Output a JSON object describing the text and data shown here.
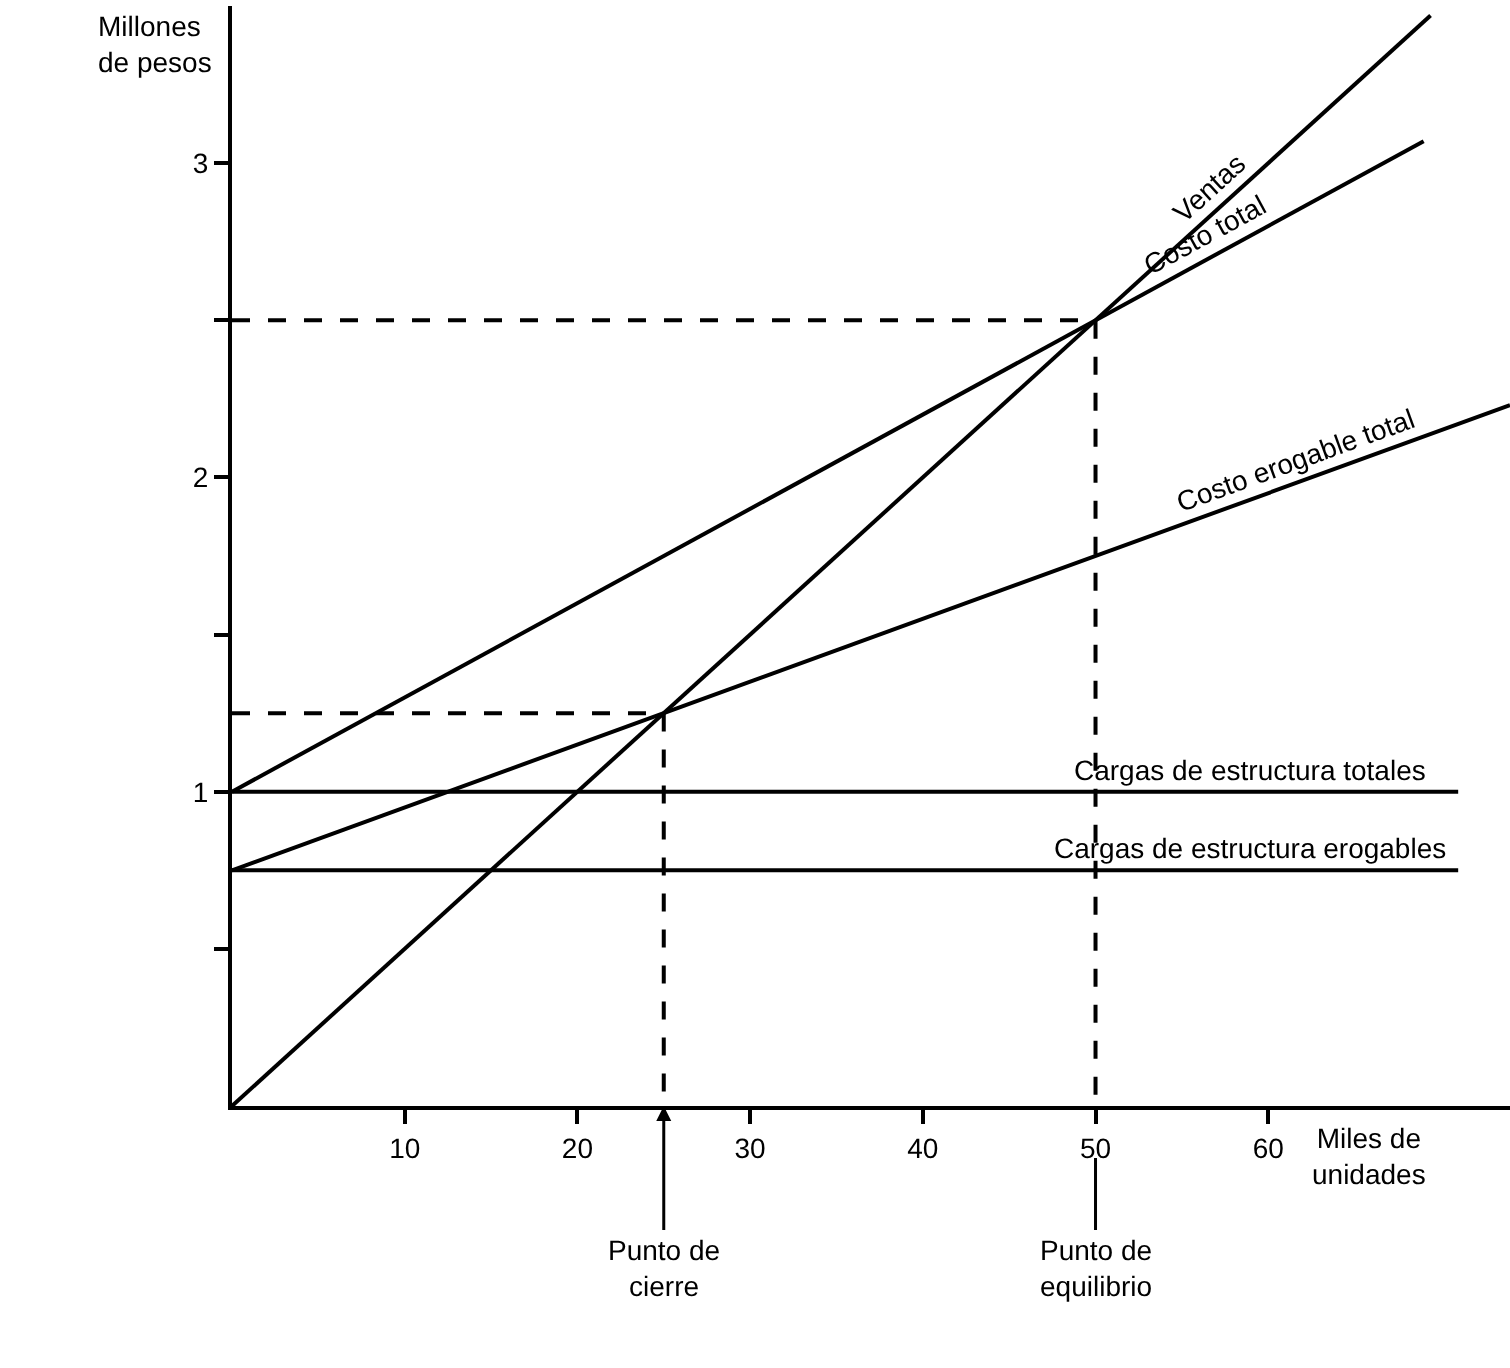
{
  "chart_data": {
    "type": "line",
    "xlabel": "Miles de unidades",
    "ylabel": "Millones de pesos",
    "xlim": [
      0,
      74
    ],
    "ylim": [
      0,
      3.5
    ],
    "xticks": [
      10,
      20,
      30,
      40,
      50,
      60
    ],
    "yticks": [
      {
        "value": 0.5,
        "label": null
      },
      1,
      {
        "value": 1.5,
        "label": null
      },
      2,
      {
        "value": 2.5,
        "label": null
      },
      3
    ],
    "grid": false,
    "legend": false,
    "marker": "none",
    "line_style": "solid",
    "series": [
      {
        "name": "Ventas",
        "color": "#000000",
        "x": [
          0,
          69.4
        ],
        "values": [
          0,
          3.47
        ]
      },
      {
        "name": "Costo total",
        "color": "#000000",
        "x": [
          0,
          69
        ],
        "values": [
          1,
          3.07
        ]
      },
      {
        "name": "Costo erogable total",
        "color": "#000000",
        "x": [
          0,
          74
        ],
        "values": [
          0.75,
          2.23
        ]
      },
      {
        "name": "Cargas de estructura totales",
        "color": "#000000",
        "x": [
          0,
          71
        ],
        "values": [
          1,
          1
        ]
      },
      {
        "name": "Cargas de estructura erogables",
        "color": "#000000",
        "x": [
          0,
          71
        ],
        "values": [
          0.75,
          0.75
        ]
      },
      {
        "color": "#000000",
        "line_style": "dashed",
        "x": [
          0,
          25,
          25
        ],
        "values": [
          1.25,
          1.25,
          0
        ]
      },
      {
        "color": "#000000",
        "line_style": "dashed",
        "x": [
          0,
          50,
          50
        ],
        "values": [
          2.5,
          2.5,
          0
        ]
      }
    ],
    "annotations": [
      {
        "text": "Punto de cierre",
        "x": 25,
        "y": 0
      },
      {
        "text": "Punto de equilibrio",
        "x": 50,
        "y": 0
      }
    ]
  }
}
